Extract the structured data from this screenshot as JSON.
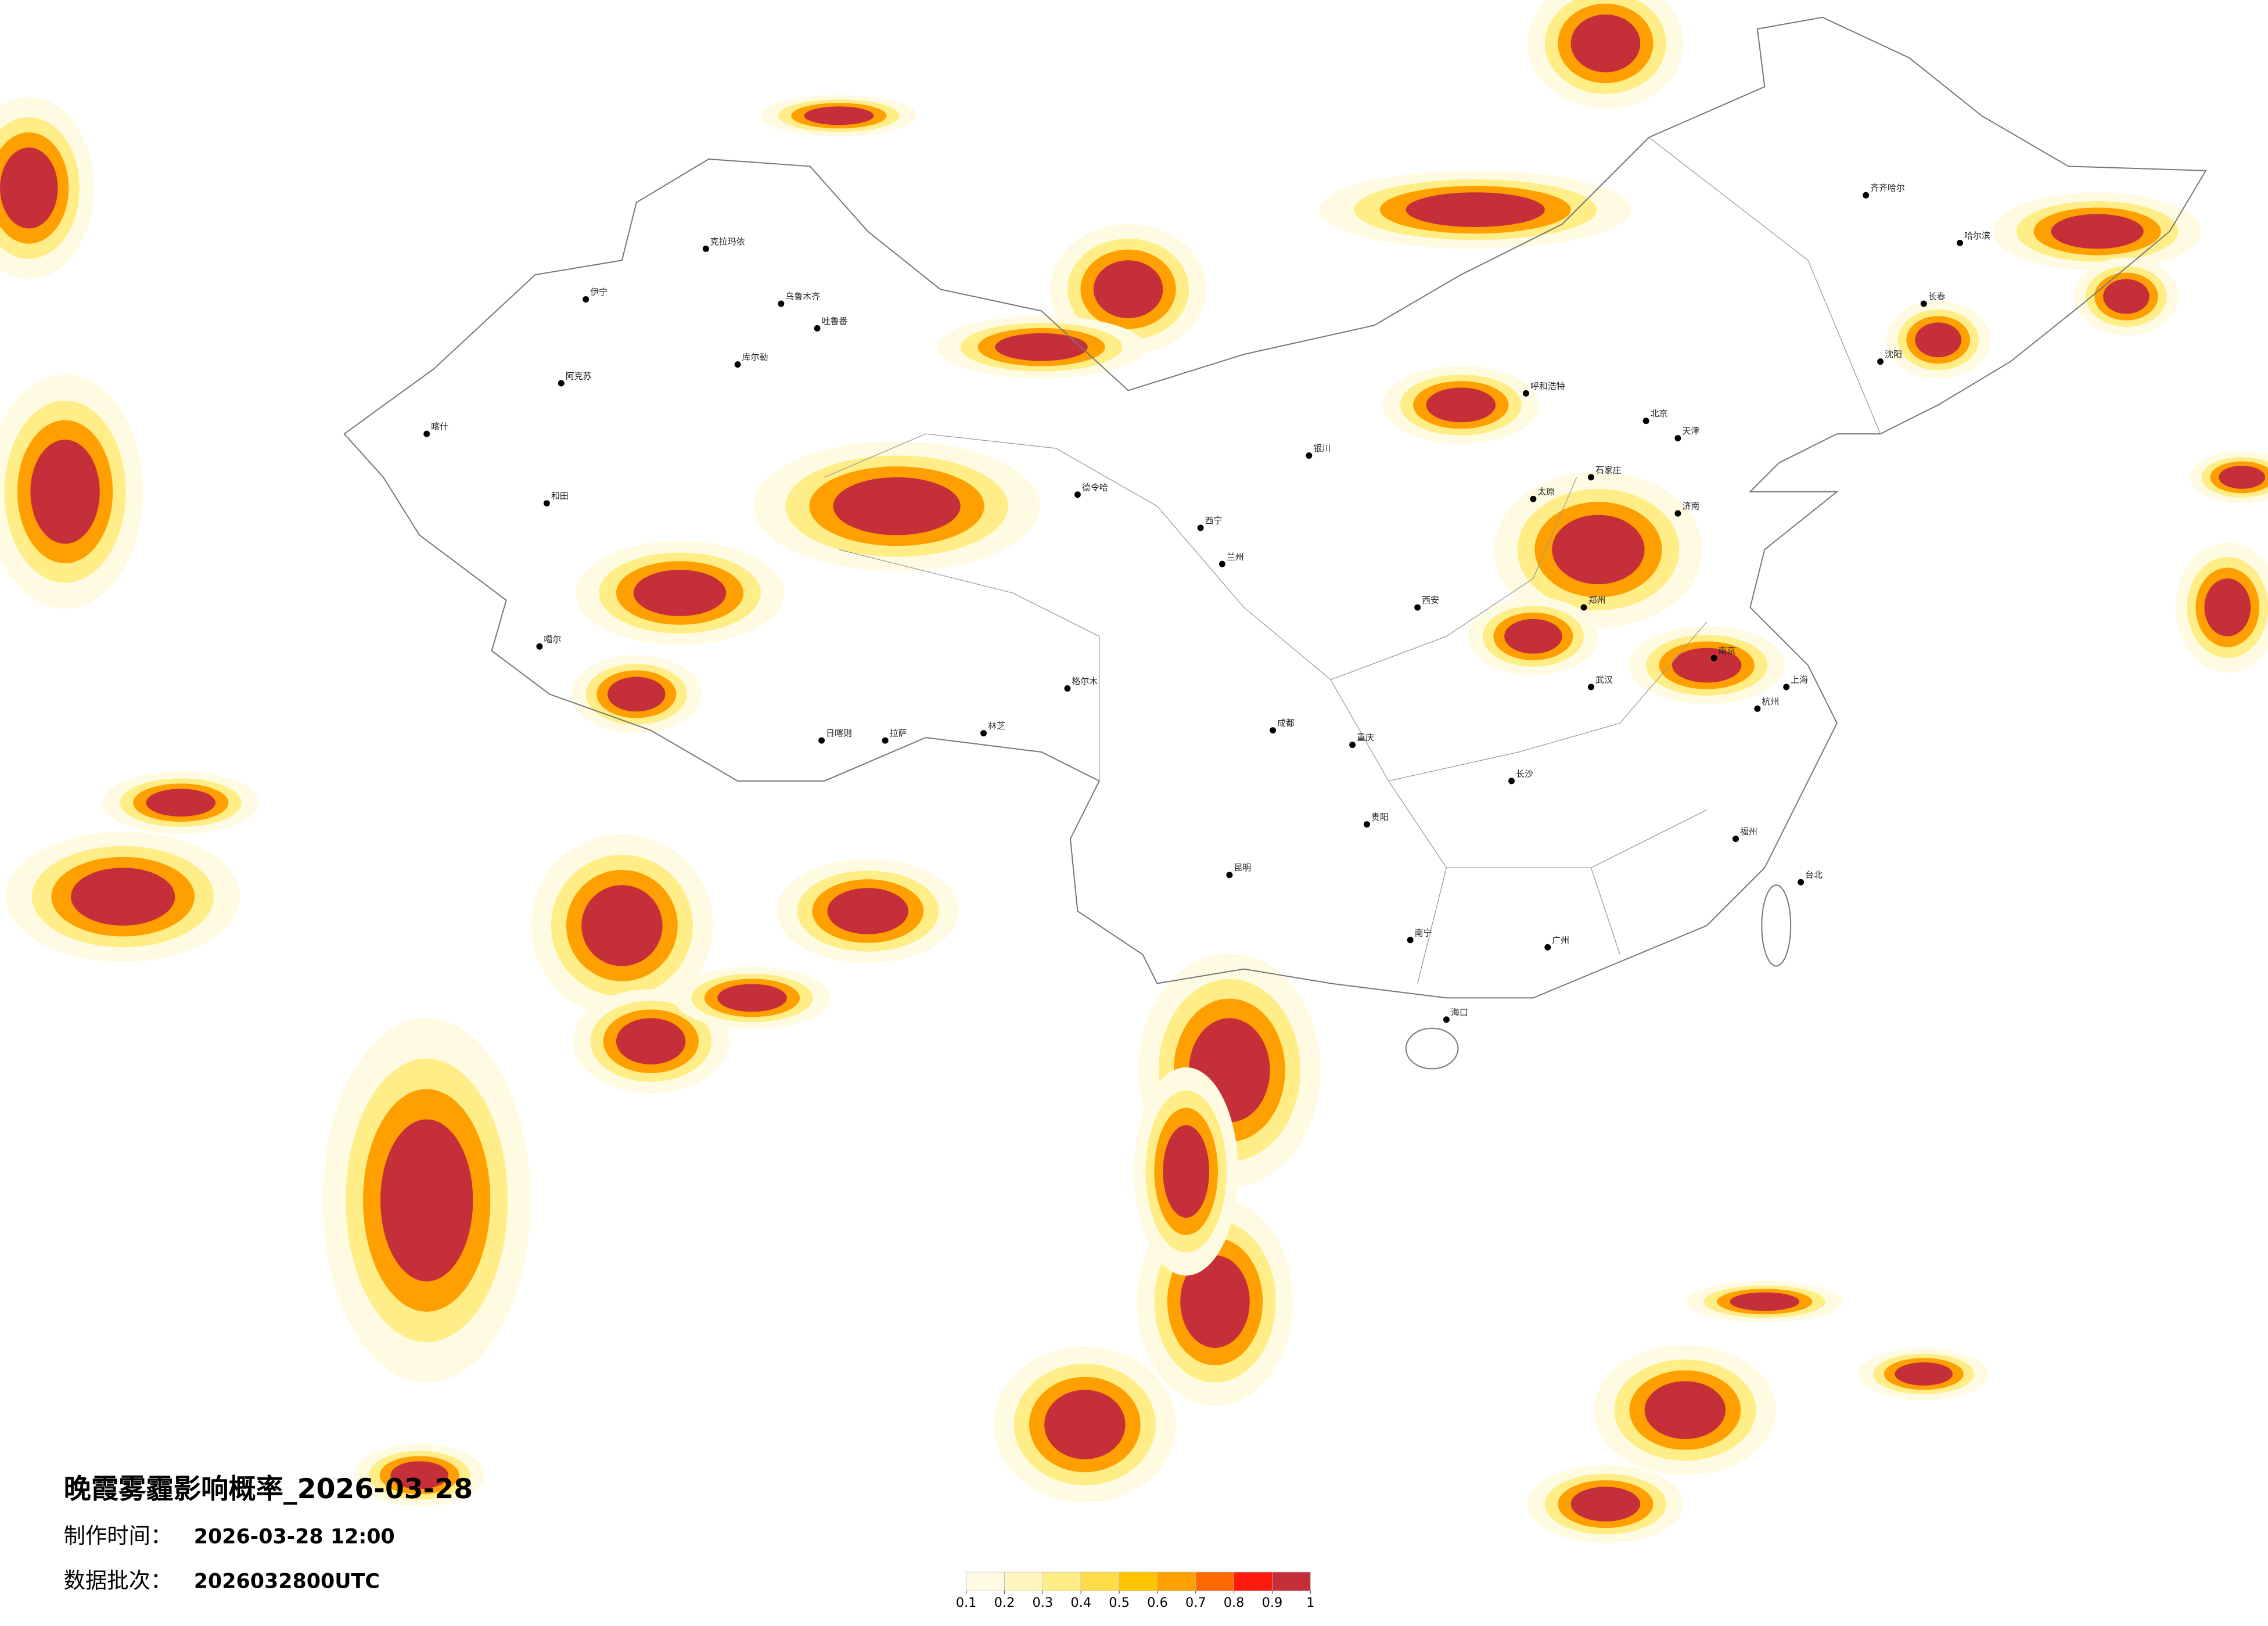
{
  "header": {
    "title": "晚霞雾霾影响概率_2026-03-28",
    "made_label": "制作时间：",
    "made_value": "2026-03-28 12:00",
    "batch_label": "数据批次：",
    "batch_value": "2026032800UTC"
  },
  "legend": {
    "ticks": [
      0.1,
      0.2,
      0.3,
      0.4,
      0.5,
      0.6,
      0.7,
      0.8,
      0.9,
      1
    ],
    "colors": [
      "#fffbe3",
      "#fff6bf",
      "#ffee88",
      "#ffdc4a",
      "#ffc400",
      "#ffa000",
      "#ff6a00",
      "#ff1a10",
      "#c52f3a"
    ]
  },
  "cities": [
    "克拉玛依",
    "伊宁",
    "乌鲁木齐",
    "吐鲁番",
    "库尔勒",
    "阿克苏",
    "喀什",
    "和田",
    "噶尔",
    "日喀则",
    "拉萨",
    "林芝",
    "格尔木",
    "德令哈",
    "西宁",
    "兰州",
    "银川",
    "呼和浩特",
    "北京",
    "天津",
    "石家庄",
    "太原",
    "郑州",
    "西安",
    "成都",
    "重庆",
    "昆明",
    "贵阳",
    "南宁",
    "广州",
    "长沙",
    "武汉",
    "南京",
    "上海",
    "杭州",
    "福州",
    "济南",
    "哈尔滨",
    "长春",
    "沈阳",
    "齐齐哈尔",
    "海口",
    "台北"
  ]
}
